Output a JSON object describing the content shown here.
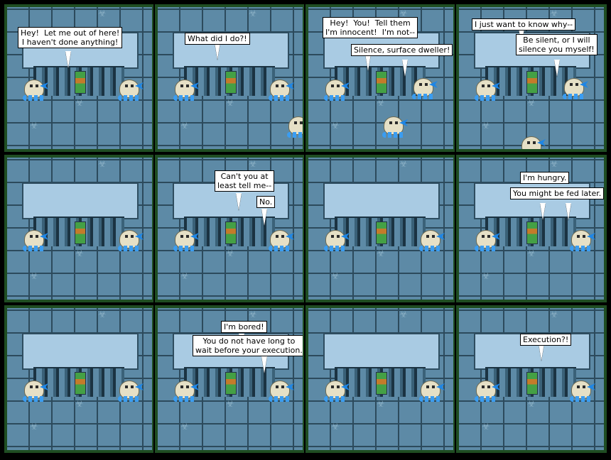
{
  "panels": [
    {
      "bubbles": [
        {
          "text": "Hey!  Let me out of here!\nI haven't done anything!"
        }
      ]
    },
    {
      "bubbles": [
        {
          "text": "What did I do?!"
        }
      ]
    },
    {
      "bubbles": [
        {
          "text": "Hey!  You!  Tell them\nI'm innocent!  I'm not--"
        },
        {
          "text": "Silence, surface dweller!"
        }
      ]
    },
    {
      "bubbles": [
        {
          "text": "I just want to know why--"
        },
        {
          "text": "Be silent, or I will\nsilence you myself!"
        }
      ]
    },
    {
      "bubbles": []
    },
    {
      "bubbles": [
        {
          "text": "Can't you at\nleast tell me--"
        },
        {
          "text": "No."
        }
      ]
    },
    {
      "bubbles": []
    },
    {
      "bubbles": [
        {
          "text": "I'm hungry."
        },
        {
          "text": "You might be fed later."
        }
      ]
    },
    {
      "bubbles": []
    },
    {
      "bubbles": [
        {
          "text": "I'm bored!"
        },
        {
          "text": "You do not have long to\nwait before your execution."
        }
      ]
    },
    {
      "bubbles": []
    },
    {
      "bubbles": [
        {
          "text": "Execution?!"
        }
      ]
    }
  ]
}
